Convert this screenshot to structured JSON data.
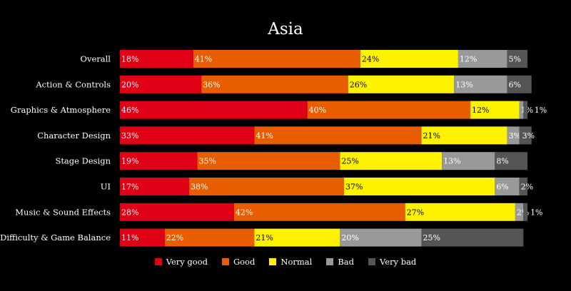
{
  "chart_data": {
    "type": "bar",
    "orientation": "horizontal",
    "stacked": true,
    "title": "Asia",
    "categories": [
      "Overall",
      "Action & Controls",
      "Graphics & Atmosphere",
      "Character Design",
      "Stage Design",
      "UI",
      "Music & Sound Effects",
      "Difficulty & Game Balance"
    ],
    "series": [
      {
        "name": "Very good",
        "color": "#e00016",
        "values": [
          18,
          20,
          46,
          33,
          19,
          17,
          28,
          11
        ]
      },
      {
        "name": "Good",
        "color": "#e85d00",
        "values": [
          41,
          36,
          40,
          41,
          35,
          38,
          42,
          22
        ]
      },
      {
        "name": "Normal",
        "color": "#fff200",
        "values": [
          24,
          26,
          12,
          21,
          25,
          37,
          27,
          21
        ]
      },
      {
        "name": "Bad",
        "color": "#999999",
        "values": [
          12,
          13,
          1,
          3,
          13,
          6,
          2,
          20
        ]
      },
      {
        "name": "Very bad",
        "color": "#555555",
        "values": [
          5,
          6,
          1,
          3,
          8,
          2,
          1,
          25
        ]
      }
    ],
    "value_labels": [
      [
        "18%",
        "41%",
        "24%",
        "12%",
        "5%"
      ],
      [
        "20%",
        "36%",
        "26%",
        "13%",
        "6%"
      ],
      [
        "46%",
        "40%",
        "12%",
        "1%",
        "1%"
      ],
      [
        "33%",
        "41%",
        "21%",
        "3%",
        "3%"
      ],
      [
        "19%",
        "35%",
        "25%",
        "13%",
        "8%"
      ],
      [
        "17%",
        "38%",
        "37%",
        "6%",
        "2%"
      ],
      [
        "28%",
        "42%",
        "27%",
        "2%",
        "1%"
      ],
      [
        "11%",
        "22%",
        "21%",
        "20%",
        "25%"
      ]
    ],
    "label_colors": [
      "#ffffff",
      "#ffffff",
      "#000000",
      "#ffffff",
      "#ffffff"
    ],
    "xlim": [
      0,
      100
    ],
    "grid": false,
    "legend_position": "bottom-center"
  }
}
